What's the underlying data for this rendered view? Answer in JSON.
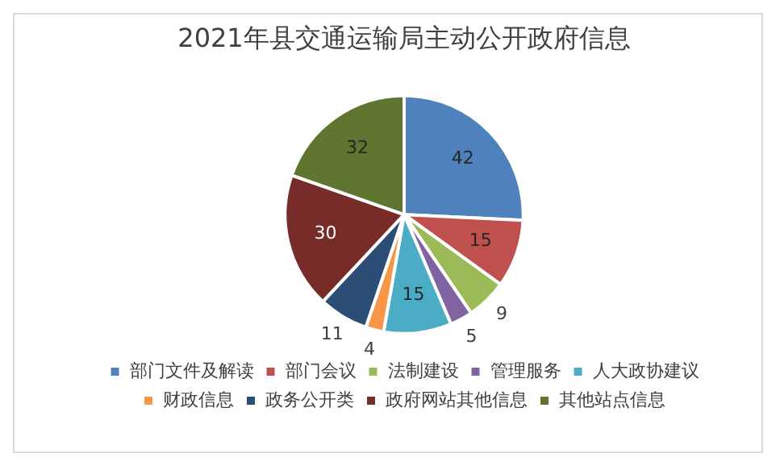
{
  "chart_data": {
    "type": "pie",
    "title": "2021年县交通运输局主动公开政府信息",
    "categories": [
      "部门文件及解读",
      "部门会议",
      "法制建设",
      "管理服务",
      "人大政协建议",
      "财政信息",
      "政务公开类",
      "政府网站其他信息",
      "其他站点信息"
    ],
    "values": [
      42,
      15,
      9,
      5,
      15,
      4,
      11,
      30,
      32
    ],
    "colors": [
      "#4f81bd",
      "#c0504d",
      "#9bbb59",
      "#8064a2",
      "#4bacc6",
      "#f79646",
      "#2c4d75",
      "#772c2a",
      "#5f7530"
    ],
    "data_labels": true,
    "legend": "bottom"
  }
}
